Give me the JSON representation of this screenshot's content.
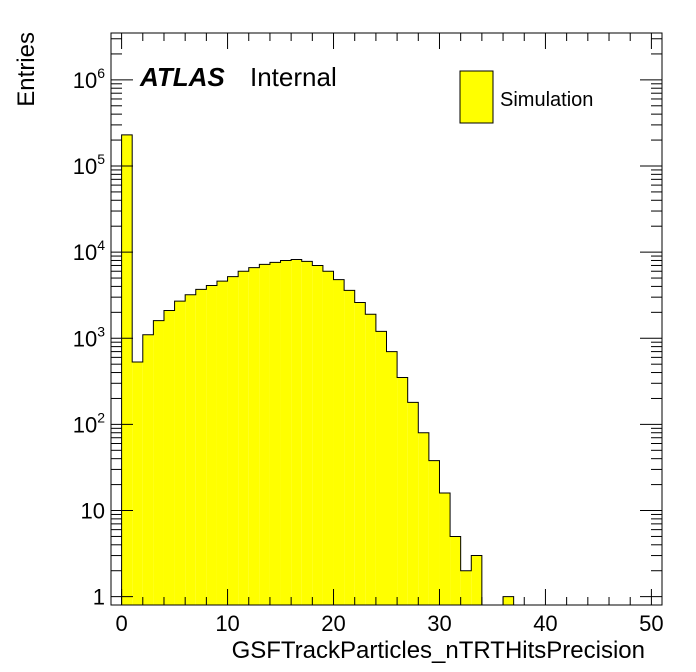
{
  "chart_data": {
    "type": "bar",
    "histogram": true,
    "label_main": "ATLAS",
    "label_sub": "Internal",
    "xlabel": "GSFTrackParticles_nTRTHitsPrecision",
    "ylabel": "Entries",
    "xlim": [
      -1,
      51
    ],
    "ylim": [
      0.8,
      3500000
    ],
    "ylog": true,
    "legend_position": "top-right",
    "fill_color": "#ffff00",
    "line_color": "#000000",
    "x_ticks": [
      "0",
      "10",
      "20",
      "30",
      "40",
      "50"
    ],
    "y_ticks": [
      "1",
      "10",
      "10^2",
      "10^3",
      "10^4",
      "10^5",
      "10^6"
    ],
    "series": [
      {
        "name": "Simulation",
        "bin_edges": [
          -1,
          0,
          1,
          2,
          3,
          4,
          5,
          6,
          7,
          8,
          9,
          10,
          11,
          12,
          13,
          14,
          15,
          16,
          17,
          18,
          19,
          20,
          21,
          22,
          23,
          24,
          25,
          26,
          27,
          28,
          29,
          30,
          31,
          32,
          33,
          34,
          35,
          36,
          37,
          38,
          39,
          40,
          41,
          42,
          43,
          44,
          45,
          46,
          47,
          48,
          49,
          50,
          51
        ],
        "values": [
          0,
          230000,
          530,
          1100,
          1600,
          2100,
          2700,
          3200,
          3700,
          4100,
          4600,
          5200,
          6000,
          6600,
          7200,
          7600,
          8000,
          8200,
          7800,
          7000,
          6000,
          4800,
          3600,
          2600,
          1900,
          1200,
          700,
          350,
          180,
          80,
          38,
          16,
          5,
          2,
          3,
          0,
          0,
          1,
          0,
          0,
          0,
          0,
          0,
          0,
          0,
          0,
          0,
          0,
          0,
          0,
          0,
          0
        ]
      }
    ]
  }
}
